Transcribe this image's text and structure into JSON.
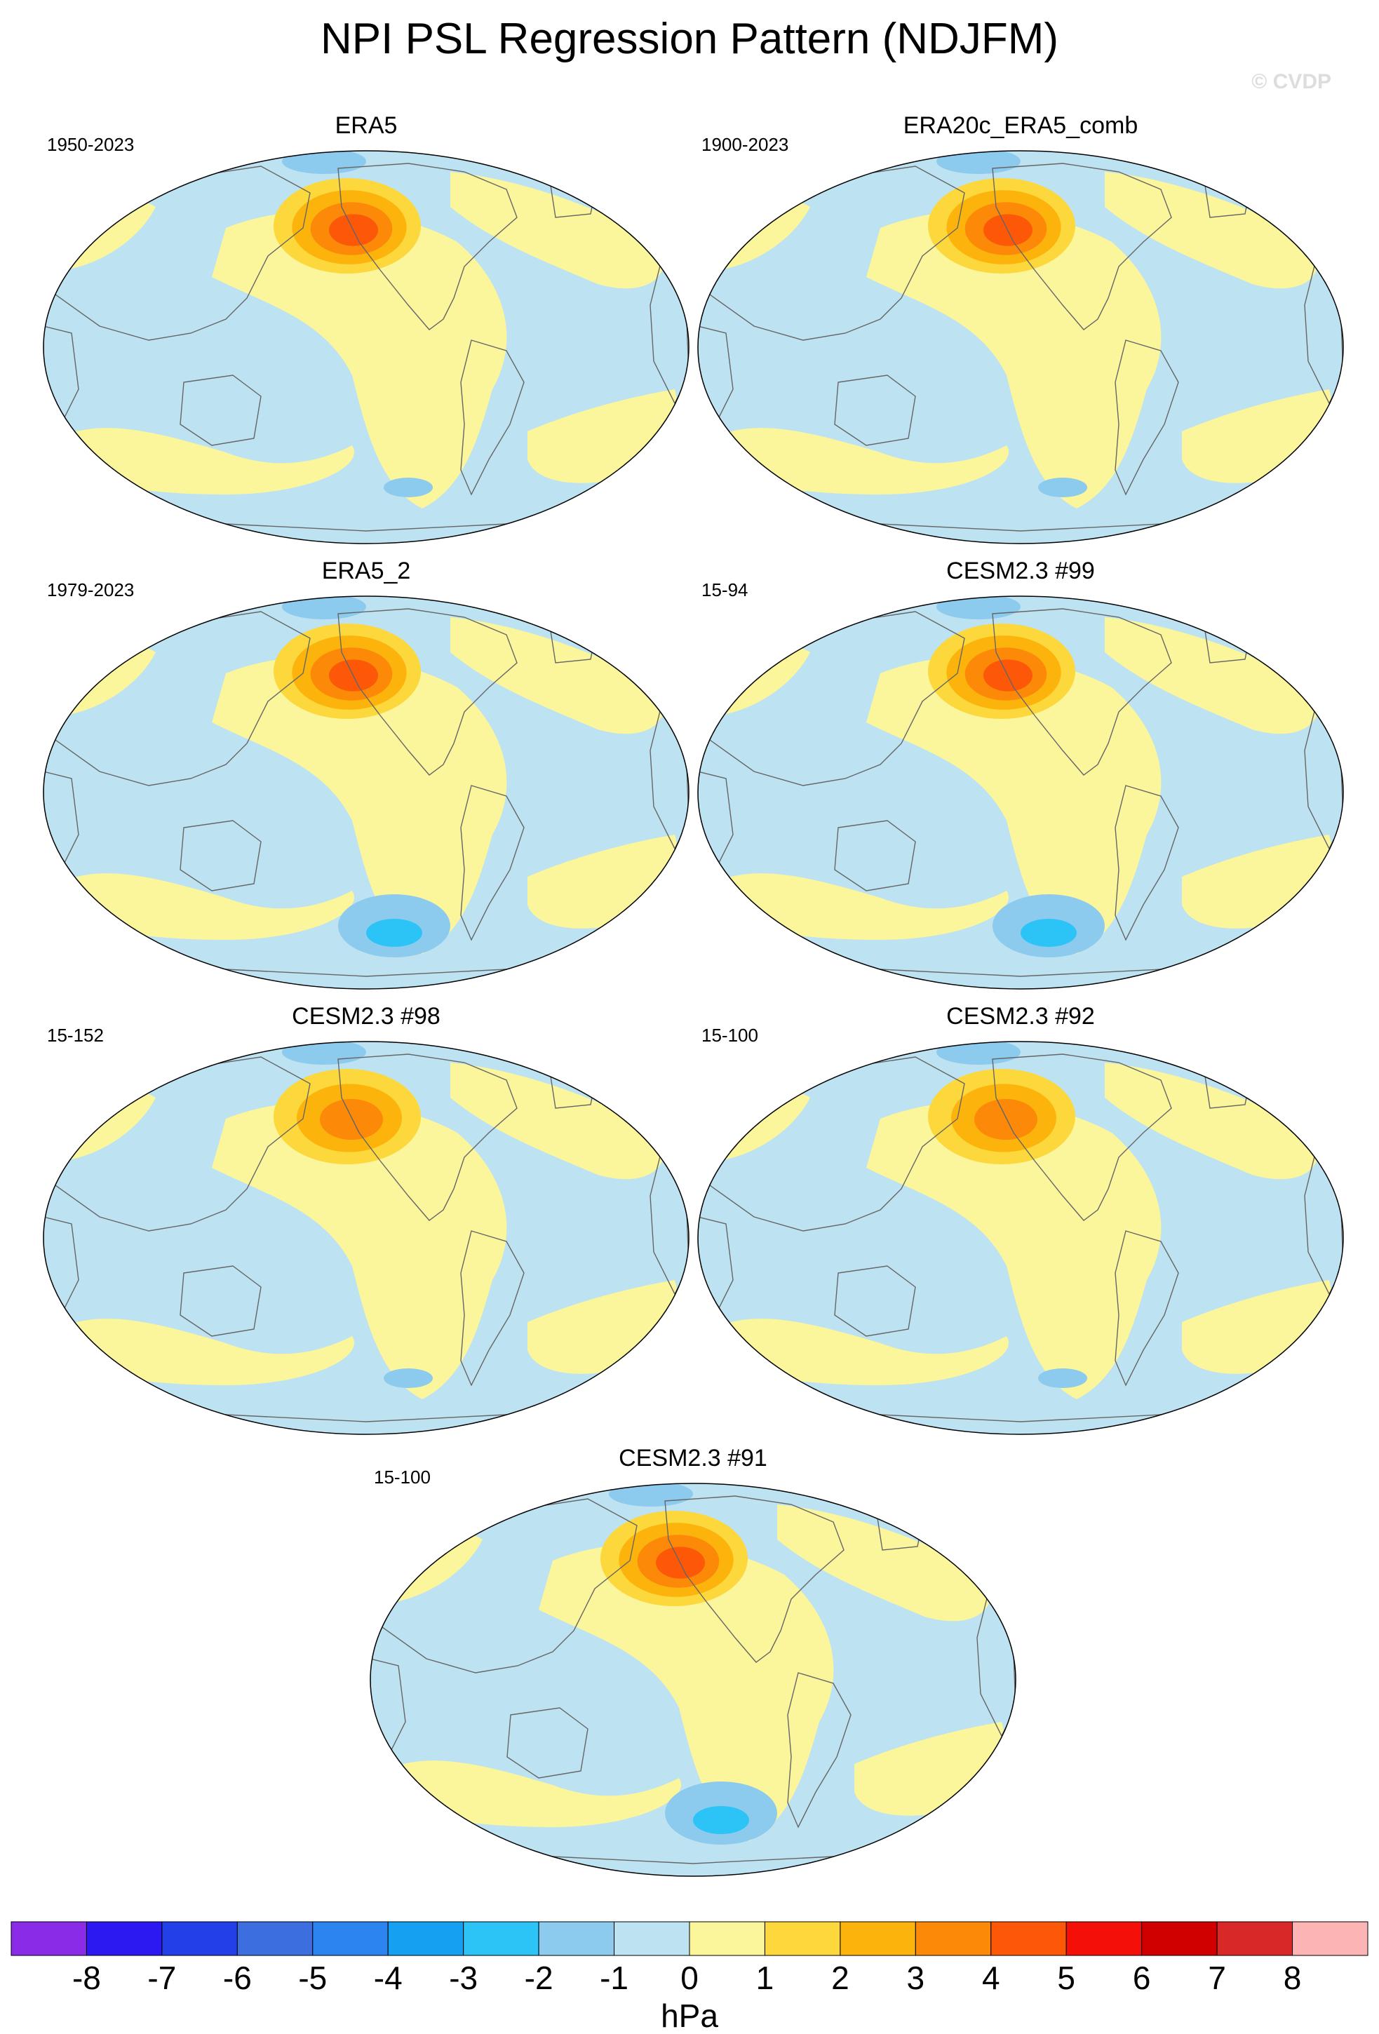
{
  "title": "NPI PSL Regression Pattern (NDJFM)",
  "copyright": "© CVDP",
  "colorbar": {
    "units": "hPa",
    "ticks": [
      "-8",
      "-7",
      "-6",
      "-5",
      "-4",
      "-3",
      "-2",
      "-1",
      "0",
      "1",
      "2",
      "3",
      "4",
      "5",
      "6",
      "7",
      "8"
    ],
    "colors": [
      "#8a2be8",
      "#2c18f0",
      "#2340e8",
      "#3d6ee0",
      "#2c84f0",
      "#16a0f2",
      "#2cc4f6",
      "#8ccaee",
      "#bde2f2",
      "#fbf59c",
      "#fcd83c",
      "#fcb40c",
      "#fc8a08",
      "#fc5808",
      "#f41008",
      "#d00000",
      "#d82828",
      "#fcb4b4"
    ]
  },
  "chart_data": {
    "type": "map",
    "variable": "PSL regression on NPI",
    "units": "hPa",
    "projection": "Robinson, Pacific-centered",
    "contour_levels": [
      -8,
      -7,
      -6,
      -5,
      -4,
      -3,
      -2,
      -1,
      0,
      1,
      2,
      3,
      4,
      5,
      6,
      7,
      8
    ],
    "panels": [
      {
        "name": "ERA5",
        "period": "1950-2023",
        "min_approx": -1.5,
        "max_approx": 4.5
      },
      {
        "name": "ERA20c_ERA5_comb",
        "period": "1900-2023",
        "min_approx": -1.5,
        "max_approx": 4.5
      },
      {
        "name": "ERA5_2",
        "period": "1979-2023",
        "min_approx": -2.5,
        "max_approx": 4.5
      },
      {
        "name": "CESM2.3 #99",
        "period": "15-94",
        "min_approx": -2.5,
        "max_approx": 4.5
      },
      {
        "name": "CESM2.3 #98",
        "period": "15-152",
        "min_approx": -1.5,
        "max_approx": 3.5
      },
      {
        "name": "CESM2.3 #92",
        "period": "15-100",
        "min_approx": -1.5,
        "max_approx": 3.5
      },
      {
        "name": "CESM2.3 #91",
        "period": "15-100",
        "min_approx": -2.5,
        "max_approx": 4.5
      }
    ]
  }
}
